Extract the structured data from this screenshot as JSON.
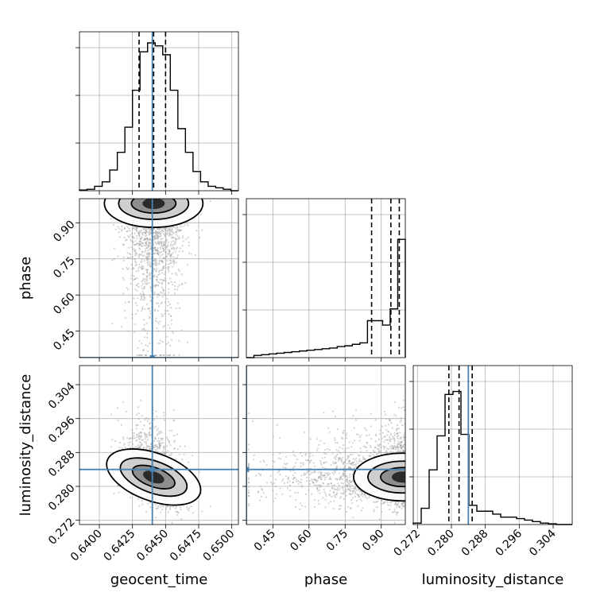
{
  "chart_data": {
    "type": "corner",
    "parameters": [
      "geocent_time",
      "phase",
      "luminosity_distance"
    ],
    "truth": {
      "geocent_time": 0.644,
      "phase": 0.34,
      "luminosity_distance": 0.284
    },
    "quantiles": {
      "geocent_time": [
        0.643,
        0.6441,
        0.645
      ],
      "phase": [
        0.86,
        0.94,
        0.975
      ],
      "luminosity_distance": [
        0.2794,
        0.2818,
        0.2849
      ]
    },
    "axes": {
      "geocent_time": {
        "label": "geocent_time",
        "range": [
          0.6385,
          0.6505
        ],
        "ticks": [
          0.64,
          0.6425,
          0.645,
          0.6475,
          0.65
        ],
        "tick_labels": [
          "0.6400",
          "0.6425",
          "0.6450",
          "0.6475",
          "0.6500"
        ]
      },
      "phase": {
        "label": "phase",
        "range": [
          0.34,
          1.0
        ],
        "ticks": [
          0.45,
          0.6,
          0.75,
          0.9
        ],
        "tick_labels": [
          "0.45",
          "0.60",
          "0.75",
          "0.90"
        ]
      },
      "luminosity_distance": {
        "label": "luminosity_distance",
        "range": [
          0.271,
          0.3085
        ],
        "ticks": [
          0.272,
          0.28,
          0.288,
          0.296,
          0.304
        ],
        "tick_labels": [
          "0.272",
          "0.280",
          "0.288",
          "0.296",
          "0.304"
        ]
      }
    },
    "hist1d": {
      "geocent_time": [
        0.005,
        0.01,
        0.03,
        0.06,
        0.14,
        0.26,
        0.43,
        0.68,
        0.94,
        1.0,
        0.98,
        0.92,
        0.68,
        0.42,
        0.26,
        0.13,
        0.06,
        0.03,
        0.02,
        0.01,
        0.0
      ],
      "phase": [
        0.0,
        0.015,
        0.02,
        0.025,
        0.03,
        0.035,
        0.04,
        0.045,
        0.05,
        0.055,
        0.06,
        0.065,
        0.075,
        0.08,
        0.09,
        0.1,
        0.25,
        0.25,
        0.22,
        0.33,
        0.8
      ],
      "luminosity_distance": [
        0.01,
        0.11,
        0.37,
        0.6,
        0.88,
        0.9,
        0.61,
        0.13,
        0.09,
        0.09,
        0.07,
        0.05,
        0.05,
        0.04,
        0.03,
        0.02,
        0.01,
        0.005,
        0.0,
        0.0
      ]
    },
    "grid": true,
    "colors": {
      "truth": "#4682b4",
      "hist": "#000000",
      "scatter": "#9e9e9e",
      "quantile": "#000000"
    }
  }
}
